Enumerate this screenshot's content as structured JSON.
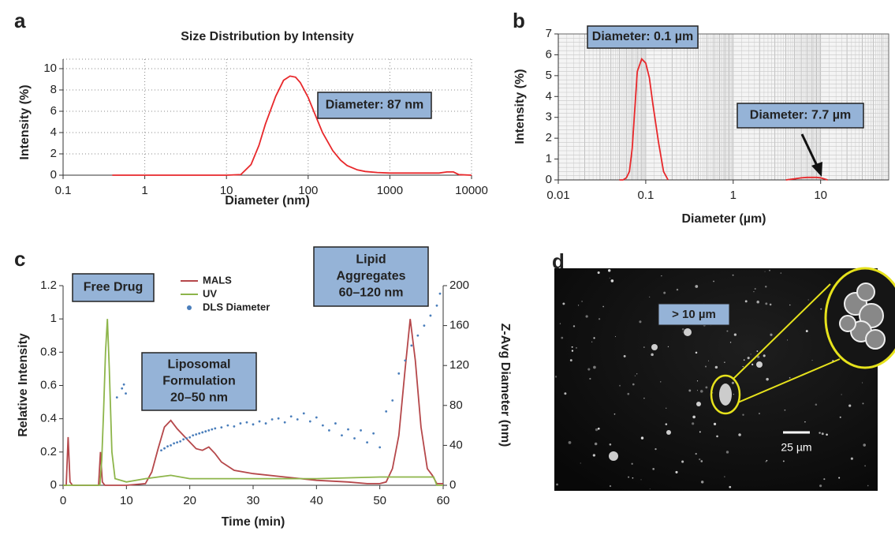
{
  "chart_data": [
    {
      "type": "line",
      "panel": "a",
      "title": "Size Distribution by Intensity",
      "xlabel": "Diameter (nm)",
      "ylabel": "Intensity (%)",
      "xscale": "log",
      "xlim": [
        0.1,
        10000
      ],
      "xticks": [
        0.1,
        1,
        10,
        100,
        1000,
        10000
      ],
      "ylim": [
        0,
        10
      ],
      "yticks": [
        0,
        2,
        4,
        6,
        8,
        10
      ],
      "grid": "major",
      "annotations": [
        "Diameter: 87 nm"
      ],
      "series": [
        {
          "color": "#e8282b",
          "x": [
            0.4,
            1,
            5,
            10,
            15,
            20,
            25,
            30,
            40,
            50,
            60,
            70,
            80,
            100,
            120,
            150,
            200,
            250,
            300,
            400,
            500,
            700,
            1000,
            2000,
            3000,
            4000,
            5000,
            6000,
            7000,
            10000
          ],
          "values": [
            0,
            0,
            0,
            0,
            0.05,
            1.0,
            2.8,
            4.8,
            7.4,
            8.9,
            9.3,
            9.2,
            8.7,
            7.3,
            5.8,
            4.0,
            2.3,
            1.4,
            0.9,
            0.5,
            0.35,
            0.25,
            0.2,
            0.2,
            0.2,
            0.2,
            0.3,
            0.3,
            0.05,
            0
          ]
        }
      ]
    },
    {
      "type": "line",
      "panel": "b",
      "xlabel": "Diameter (µm)",
      "ylabel": "Intensity (%)",
      "xscale": "log",
      "xlim": [
        0.01,
        60
      ],
      "xticks": [
        0.01,
        0.1,
        1,
        10
      ],
      "ylim": [
        0,
        7
      ],
      "yticks": [
        0,
        1,
        2,
        3,
        4,
        5,
        6,
        7
      ],
      "grid": "minor",
      "annotations": [
        "Diameter: 0.1 µm",
        "Diameter: 7.7 µm"
      ],
      "series": [
        {
          "color": "#e8282b",
          "x": [
            0.05,
            0.055,
            0.06,
            0.065,
            0.07,
            0.08,
            0.09,
            0.1,
            0.11,
            0.12,
            0.14,
            0.16,
            0.18,
            1,
            4,
            5,
            6,
            7,
            8,
            9,
            10,
            11,
            12
          ],
          "values": [
            0,
            0,
            0.1,
            0.4,
            1.5,
            5.2,
            5.8,
            5.6,
            4.9,
            3.7,
            1.8,
            0.4,
            0,
            null,
            0,
            0.05,
            0.1,
            0.12,
            0.12,
            0.12,
            0.1,
            0.05,
            0
          ]
        }
      ]
    },
    {
      "type": "line",
      "panel": "c",
      "xlabel": "Time (min)",
      "ylabel": "Relative Intensity",
      "y2label": "Z-Avg Diameter (nm)",
      "xlim": [
        0,
        60
      ],
      "xticks": [
        0,
        10,
        20,
        30,
        40,
        50,
        60
      ],
      "ylim": [
        0,
        1.2
      ],
      "yticks": [
        0,
        0.2,
        0.4,
        0.6,
        0.8,
        1,
        1.2
      ],
      "y2lim": [
        0,
        200
      ],
      "y2ticks": [
        0,
        40,
        80,
        120,
        160,
        200
      ],
      "annotations": [
        [
          "Free Drug"
        ],
        [
          "Liposomal",
          "Formulation",
          "20–50 nm"
        ],
        [
          "Lipid",
          "Aggregates",
          "60–120 nm"
        ]
      ],
      "series": [
        {
          "name": "MALS",
          "color": "#b5474a",
          "x": [
            0,
            0.5,
            0.8,
            1.1,
            1.5,
            5.6,
            5.9,
            6.2,
            6.6,
            10,
            13,
            14,
            15,
            16,
            17,
            18,
            19,
            20,
            21,
            22,
            23,
            24,
            25,
            27,
            30,
            35,
            40,
            45,
            48,
            50,
            51,
            52,
            53,
            54,
            54.8,
            55.6,
            56.5,
            57.5,
            58.3,
            59,
            60
          ],
          "values": [
            0,
            0,
            0.29,
            0.02,
            0,
            0,
            0.2,
            0.02,
            0,
            0,
            0.01,
            0.08,
            0.22,
            0.35,
            0.39,
            0.34,
            0.3,
            0.26,
            0.22,
            0.21,
            0.23,
            0.19,
            0.14,
            0.09,
            0.07,
            0.05,
            0.03,
            0.02,
            0.01,
            0.01,
            0.02,
            0.1,
            0.3,
            0.7,
            1.0,
            0.75,
            0.35,
            0.1,
            0.06,
            0.01,
            0.01
          ]
        },
        {
          "name": "UV",
          "color": "#8db54a",
          "x": [
            0,
            5.8,
            6.1,
            6.4,
            6.7,
            7,
            7.3,
            7.7,
            8.2,
            10,
            13,
            15,
            17,
            20,
            25,
            30,
            40,
            50,
            57,
            58.5,
            59,
            60
          ],
          "values": [
            0,
            0,
            0.15,
            0.45,
            0.8,
            1.0,
            0.7,
            0.2,
            0.04,
            0.02,
            0.04,
            0.05,
            0.06,
            0.04,
            0.04,
            0.04,
            0.04,
            0.05,
            0.05,
            0.05,
            0,
            0
          ]
        },
        {
          "name": "DLS Diameter",
          "color": "#4a7ebb",
          "type": "scatter",
          "axis": "y2",
          "x": [
            8.5,
            9.3,
            9.6,
            9.9,
            15.5,
            16,
            16.5,
            17,
            17.5,
            18,
            18.5,
            19,
            19.5,
            20,
            20.5,
            21,
            21.5,
            22,
            22.5,
            23,
            23.5,
            24,
            25,
            26,
            27,
            28,
            29,
            30,
            31,
            32,
            33,
            34,
            35,
            36,
            37,
            38,
            39,
            40,
            41,
            42,
            43,
            44,
            45,
            46,
            47,
            48,
            49,
            50,
            51,
            52,
            53,
            54,
            55,
            56,
            57,
            58,
            59,
            59.5
          ],
          "values": [
            88,
            97,
            101,
            92,
            35,
            37,
            39,
            40,
            42,
            43,
            44,
            46,
            47,
            48,
            50,
            51,
            52,
            53,
            54,
            55,
            56,
            57,
            58,
            60,
            59,
            62,
            63,
            61,
            64,
            62,
            66,
            67,
            63,
            69,
            66,
            72,
            64,
            68,
            60,
            55,
            62,
            50,
            56,
            47,
            55,
            43,
            52,
            38,
            74,
            85,
            112,
            125,
            140,
            150,
            160,
            170,
            180,
            192
          ]
        }
      ]
    }
  ],
  "image_panel": {
    "panel": "d",
    "annotation": "> 10 µm",
    "scale_bar": "25 µm"
  }
}
